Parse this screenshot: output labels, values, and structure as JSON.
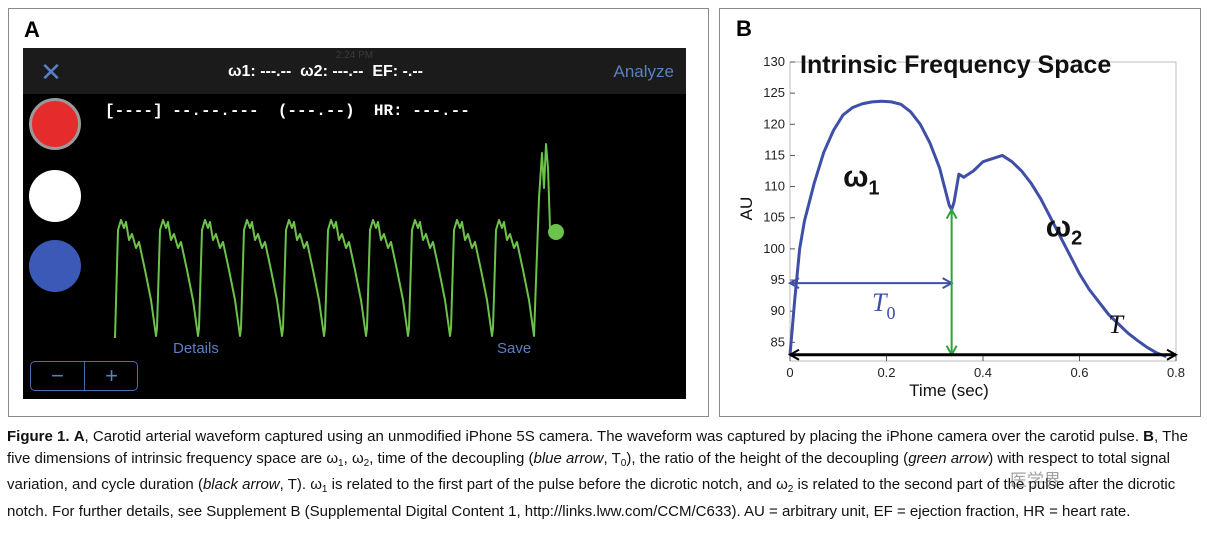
{
  "panel_a": {
    "letter": "A",
    "status_time": "2:24 PM",
    "topbar": {
      "close_icon": "close-x-icon",
      "readout": "ω1: ---.--  ω2: ---.--  EF: -.--",
      "analyze_label": "Analyze"
    },
    "readout_line": "[----] --.--.---  (---.--)  HR: ---.--",
    "circles": [
      "#e52b2b",
      "#ffffff",
      "#3b5ab8"
    ],
    "details_label": "Details",
    "save_label": "Save",
    "stepper": {
      "minus_label": "−",
      "plus_label": "+"
    },
    "waveform_color": "#6cc24a"
  },
  "panel_b": {
    "letter": "B",
    "chart_data": {
      "type": "line",
      "title": "Intrinsic Frequency Space",
      "xlabel": "Time (sec)",
      "ylabel": "AU",
      "xlim": [
        0,
        0.8
      ],
      "ylim": [
        82,
        130
      ],
      "x_ticks": [
        0,
        0.2,
        0.4,
        0.6,
        0.8
      ],
      "x_tick_labels": [
        "0",
        "0.2",
        "0.4",
        "0.6",
        "0.8"
      ],
      "y_ticks": [
        85,
        90,
        95,
        100,
        105,
        110,
        115,
        120,
        125,
        130
      ],
      "y_tick_labels": [
        "85",
        "90",
        "95",
        "100",
        "105",
        "110",
        "115",
        "120",
        "125",
        "130"
      ],
      "series": [
        {
          "color": "#3f4fa8",
          "x": [
            0,
            0.01,
            0.02,
            0.03,
            0.05,
            0.07,
            0.09,
            0.11,
            0.13,
            0.15,
            0.17,
            0.19,
            0.21,
            0.23,
            0.25,
            0.27,
            0.29,
            0.31,
            0.32,
            0.33,
            0.335,
            0.34,
            0.35,
            0.36,
            0.38,
            0.4,
            0.42,
            0.44,
            0.46,
            0.48,
            0.5,
            0.52,
            0.54,
            0.56,
            0.58,
            0.6,
            0.62,
            0.64,
            0.66,
            0.68,
            0.7,
            0.72,
            0.74,
            0.76,
            0.78
          ],
          "y": [
            83,
            92,
            100,
            104.5,
            110.5,
            115.5,
            119,
            121.5,
            122.7,
            123.3,
            123.6,
            123.7,
            123.6,
            123.2,
            122,
            120,
            117,
            113,
            110,
            107,
            106.3,
            107.5,
            112,
            111.5,
            112.5,
            114,
            114.5,
            115,
            114,
            112.5,
            110.5,
            108,
            105,
            102,
            99,
            96,
            93.5,
            91.5,
            89.5,
            88,
            86.5,
            85.3,
            84.2,
            83.3,
            82.7
          ]
        }
      ],
      "annotations": [
        {
          "text": "ω",
          "sub": "1",
          "x": 0.11,
          "y": 110
        },
        {
          "text": "ω",
          "sub": "2",
          "x": 0.53,
          "y": 102
        },
        {
          "text": "T",
          "sub": "0",
          "x": 0.17,
          "y": 90
        },
        {
          "text": "T",
          "sub": "",
          "x": 0.66,
          "y": 86.5
        }
      ],
      "arrows": [
        {
          "name": "blue-arrow",
          "color": "#3f4fa8",
          "from": [
            0,
            94.5
          ],
          "to": [
            0.335,
            94.5
          ]
        },
        {
          "name": "green-arrow",
          "color": "#2ea33b",
          "from": [
            0.335,
            106.3
          ],
          "to": [
            0.335,
            83
          ]
        },
        {
          "name": "black-arrow",
          "color": "#000000",
          "from": [
            0,
            83
          ],
          "to": [
            0.8,
            83
          ]
        }
      ]
    }
  },
  "caption": {
    "figure_label": "Figure 1.",
    "a_label": "A",
    "part1": ", Carotid arterial waveform captured using an unmodified iPhone 5S camera. The waveform was captured by placing the iPhone camera over the carotid pulse. ",
    "b_label": "B",
    "part2": ", The five dimensions of intrinsic frequency space are ω",
    "sub1": "1",
    "part3": ", ω",
    "sub2": "2",
    "part4": ", time of the decoupling (",
    "blue_arrow": "blue arrow",
    "part5": ", T",
    "sub0": "0",
    "part6": "), the ratio of the height of the decoupling (",
    "green_arrow": "green arrow",
    "part7": ") with respect to total signal variation, and cycle duration (",
    "black_arrow": "black arrow",
    "part8": ", T). ω",
    "sub3": "1",
    "part9": " is related to the first part of the pulse before the dicrotic notch, and ω",
    "sub4": "2",
    "part10": " is related to the second part of the pulse after the dicrotic notch. For further details, see Supplement B (Supplemental Digital Content 1, http://links.lww.com/CCM/C633). AU = arbitrary unit, EF = ejection fraction, HR = heart rate."
  },
  "watermark": "医学界"
}
